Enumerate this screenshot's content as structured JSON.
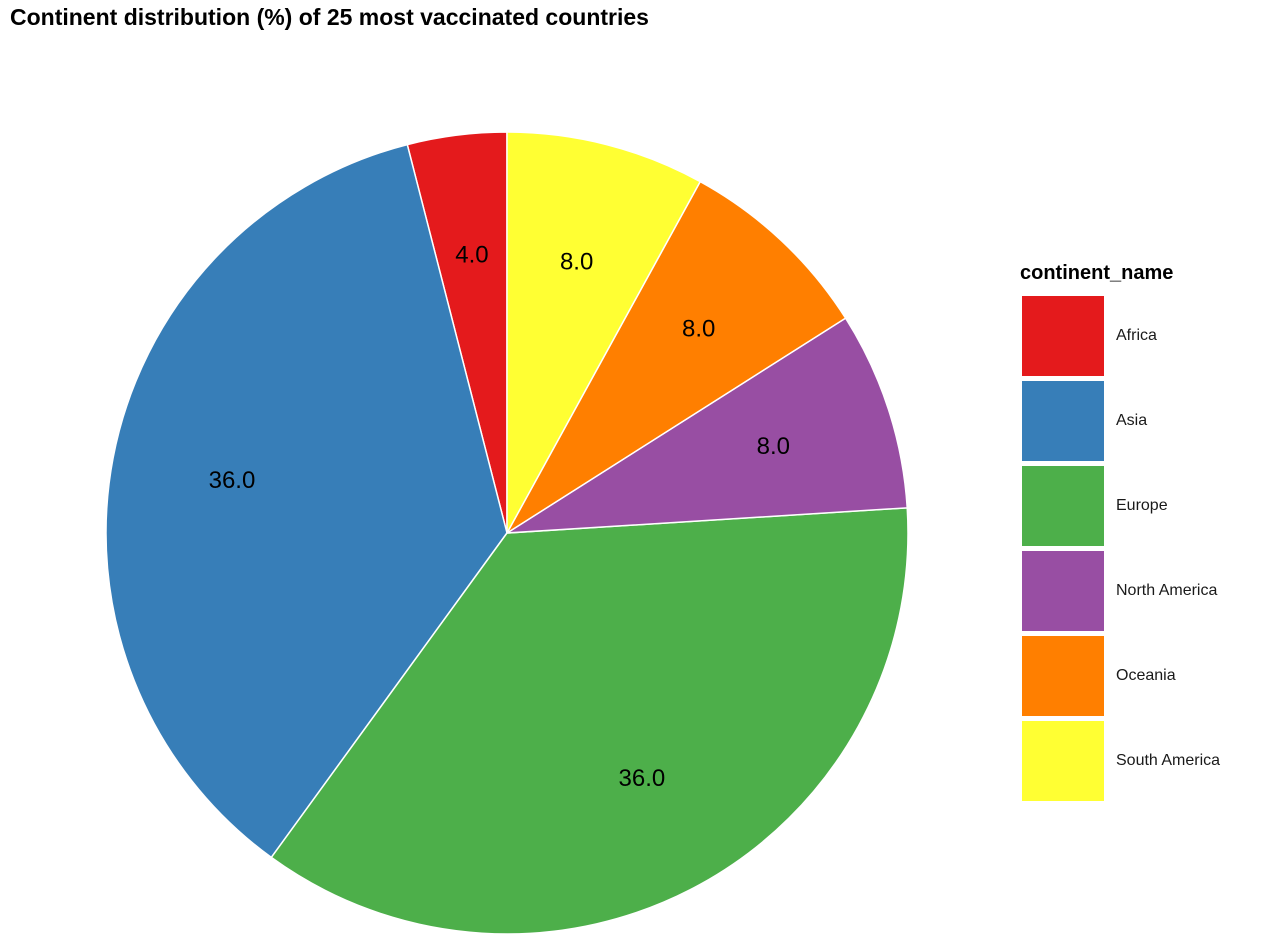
{
  "title": "Continent distribution (%) of 25 most vaccinated countries",
  "chart_data": {
    "type": "pie",
    "title": "Continent distribution (%) of 25 most vaccinated countries",
    "legend_title": "continent_name",
    "legend_position": "right",
    "categories": [
      "Africa",
      "Asia",
      "Europe",
      "North America",
      "Oceania",
      "South America"
    ],
    "values": [
      4.0,
      36.0,
      36.0,
      8.0,
      8.0,
      8.0
    ],
    "labels": [
      "4.0",
      "36.0",
      "36.0",
      "8.0",
      "8.0",
      "8.0"
    ],
    "colors": [
      "#E41A1C",
      "#377EB8",
      "#4DAF4A",
      "#984EA3",
      "#FF7F00",
      "#FFFF33"
    ],
    "direction": "counter-clockwise from top"
  }
}
